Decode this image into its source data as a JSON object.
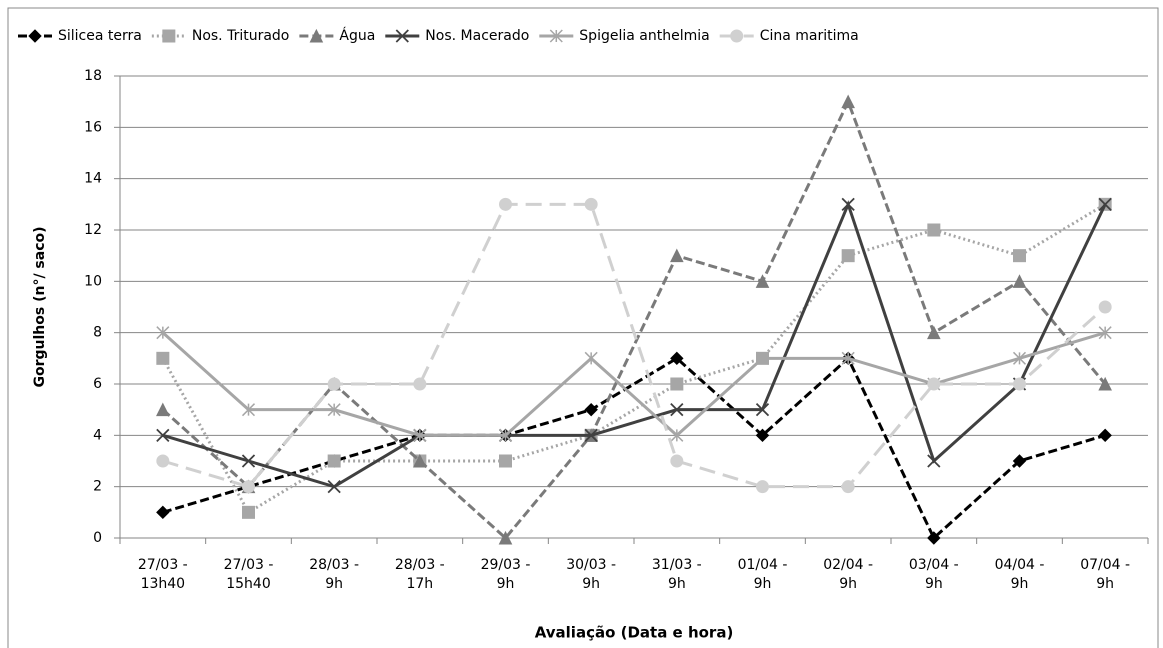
{
  "chart_data": {
    "type": "line",
    "x_label": "Avaliação (Data e hora)",
    "y_label": "Gorgulhos (n°/ saco)",
    "categories": [
      "27/03 - 13h40",
      "27/03 - 15h40",
      "28/03 - 9h",
      "28/03 - 17h",
      "29/03 - 9h",
      "30/03 - 9h",
      "31/03 - 9h",
      "01/04 - 9h",
      "02/04 - 9h",
      "03/04 - 9h",
      "04/04 - 9h",
      "07/04 - 9h"
    ],
    "series": [
      {
        "name": "Silicea terra",
        "color": "#000000",
        "dash": "dashed",
        "marker": "diamond",
        "values": [
          1,
          2,
          3,
          4,
          4,
          5,
          7,
          4,
          7,
          0,
          3,
          4
        ]
      },
      {
        "name": "Nos. Triturado",
        "color": "#a6a6a6",
        "dash": "dotted",
        "marker": "square",
        "values": [
          7,
          1,
          3,
          3,
          3,
          4,
          6,
          7,
          11,
          12,
          11,
          13
        ]
      },
      {
        "name": "Água",
        "color": "#7a7a7a",
        "dash": "dashed",
        "marker": "triangle",
        "values": [
          5,
          2,
          6,
          3,
          0,
          4,
          11,
          10,
          17,
          8,
          10,
          6
        ]
      },
      {
        "name": "Nos. Macerado",
        "color": "#404040",
        "dash": "solid",
        "marker": "x",
        "values": [
          4,
          3,
          2,
          4,
          4,
          4,
          5,
          5,
          13,
          3,
          6,
          13
        ]
      },
      {
        "name": "Spigelia anthelmia",
        "color": "#a6a6a6",
        "dash": "solid",
        "marker": "asterisk",
        "values": [
          8,
          5,
          5,
          4,
          4,
          7,
          4,
          7,
          7,
          6,
          7,
          8
        ]
      },
      {
        "name": "Cina maritima",
        "color": "#d0d0d0",
        "dash": "longdash",
        "marker": "circle",
        "values": [
          3,
          2,
          6,
          6,
          13,
          13,
          3,
          2,
          2,
          6,
          6,
          9
        ]
      }
    ],
    "ylim": [
      0,
      18
    ],
    "yticks": [
      0,
      2,
      4,
      6,
      8,
      10,
      12,
      14,
      16,
      18
    ],
    "grid": true,
    "legend": "top"
  }
}
